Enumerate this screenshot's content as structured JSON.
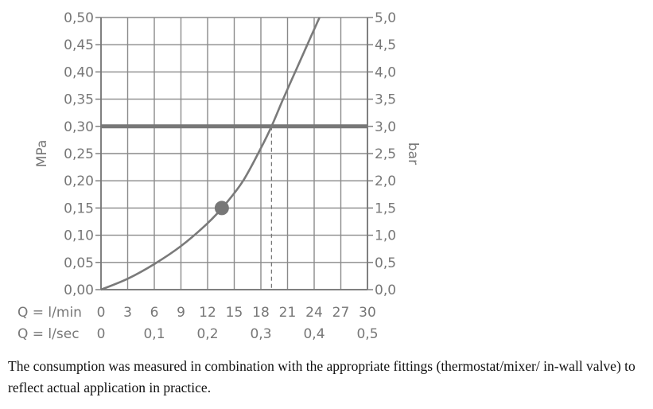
{
  "chart_data": {
    "type": "line",
    "title": "",
    "left_axis_label": "MPa",
    "right_axis_label": "bar",
    "left_ylim": [
      0,
      0.5
    ],
    "right_ylim": [
      0,
      5.0
    ],
    "left_ticks": [
      "0,00",
      "0,05",
      "0,10",
      "0,15",
      "0,20",
      "0,25",
      "0,30",
      "0,35",
      "0,40",
      "0,45",
      "0,50"
    ],
    "right_ticks": [
      "0,0",
      "0,5",
      "1,0",
      "1,5",
      "2,0",
      "2,5",
      "3,0",
      "3,5",
      "4,0",
      "4,5",
      "5,0"
    ],
    "x_axis_lpm": {
      "label": "Q = l/min",
      "ticks": [
        "0",
        "3",
        "6",
        "9",
        "12",
        "15",
        "18",
        "21",
        "24",
        "27",
        "30"
      ],
      "range": [
        0,
        30
      ]
    },
    "x_axis_lps": {
      "label": "Q = l/sec",
      "ticks": [
        "0",
        "0,1",
        "0,2",
        "0,3",
        "0,4",
        "0,5"
      ]
    },
    "grid": true,
    "series": [
      {
        "x": [
          0,
          3,
          6,
          9,
          12,
          14,
          16,
          18,
          19.2,
          20.5,
          22,
          23.5,
          24.6
        ],
        "y": [
          0,
          0.02,
          0.047,
          0.08,
          0.122,
          0.157,
          0.2,
          0.26,
          0.3,
          0.35,
          0.405,
          0.46,
          0.5
        ]
      }
    ],
    "reference_line_y": 0.3,
    "marker": {
      "x": 13.6,
      "y": 0.15
    },
    "dashed_drop": {
      "x": 19.2,
      "y": 0.3
    },
    "colors": {
      "axis": "#777777",
      "grid": "#8a8a8a",
      "curve": "#7a7a7a",
      "reference": "#777777",
      "marker": "#777777"
    }
  },
  "caption": "The consumption was measured in combination with the appropriate fittings (thermostat/mixer/ in-wall valve) to reflect actual application in practice."
}
